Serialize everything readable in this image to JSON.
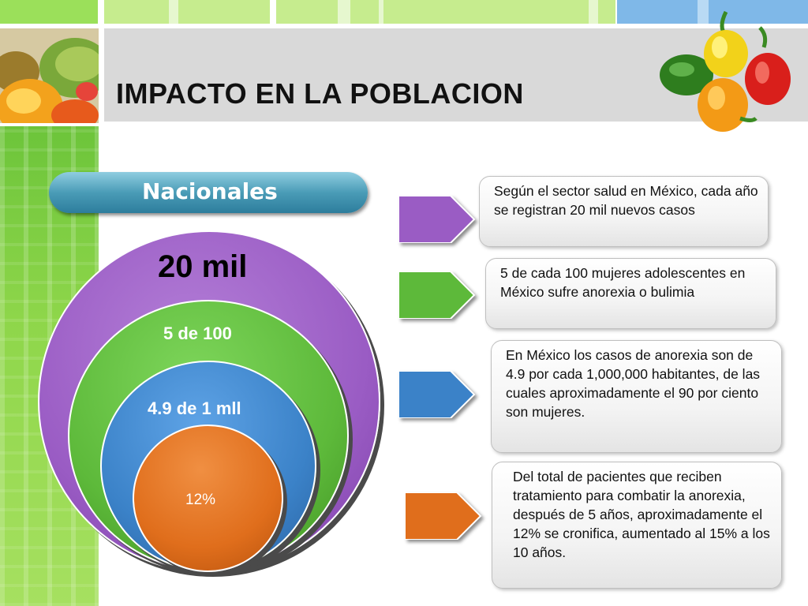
{
  "slide": {
    "title": "IMPACTO EN LA POBLACION",
    "pill_label": "Nacionales"
  },
  "circles": [
    {
      "label": "20 mil",
      "color": "#9a5cc4"
    },
    {
      "label": "5 de 100",
      "color": "#5db93a"
    },
    {
      "label": "4.9 de 1 mll",
      "color": "#3b82c8"
    },
    {
      "label": "12%",
      "color": "#e06e1c"
    }
  ],
  "facts": [
    {
      "text": "Según el sector salud en México, cada año se registran 20 mil nuevos casos",
      "color": "#9a5cc4"
    },
    {
      "text": "5 de cada 100 mujeres adolescentes en México sufre anorexia o bulimia",
      "color": "#5db93a"
    },
    {
      "text": "En México los casos de anorexia son de 4.9 por cada 1,000,000 habitantes, de las cuales aproximadamente el 90 por ciento son mujeres.",
      "color": "#3b82c8"
    },
    {
      "text": "Del total de pacientes que reciben tratamiento para combatir la anorexia, después de 5 años, aproximadamente el 12% se cronifica, aumentado al 15% a los 10 años.",
      "color": "#e06e1c"
    }
  ],
  "decor": {
    "fruit_image": "citrus-fruit-photo",
    "pepper_image": "bell-peppers-photo",
    "accent_green": "#8ed64a",
    "accent_blue": "#7fb8e8"
  }
}
